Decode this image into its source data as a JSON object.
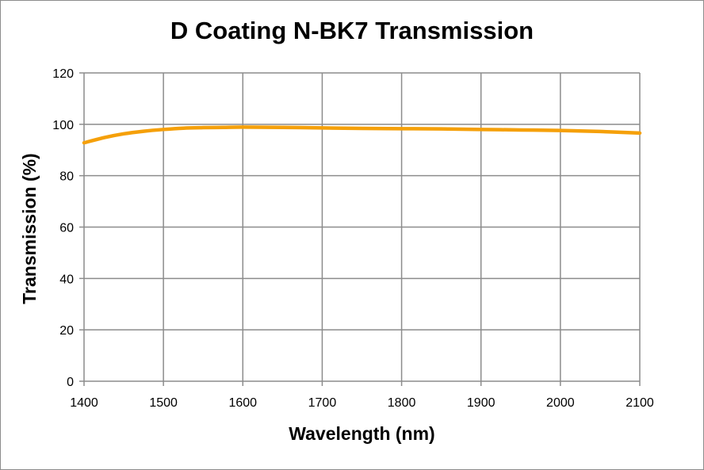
{
  "chart_data": {
    "type": "line",
    "title": "D Coating N-BK7 Transmission",
    "xlabel": "Wavelength (nm)",
    "ylabel": "Transmission (%)",
    "xlim": [
      1400,
      2100
    ],
    "ylim": [
      0,
      120
    ],
    "xticks": [
      1400,
      1500,
      1600,
      1700,
      1800,
      1900,
      2000,
      2100
    ],
    "yticks": [
      0,
      20,
      40,
      60,
      80,
      100,
      120
    ],
    "grid": true,
    "legend": "none",
    "series": [
      {
        "color": "#f5a00a",
        "x": [
          1400,
          1425,
          1450,
          1475,
          1500,
          1525,
          1550,
          1575,
          1600,
          1650,
          1700,
          1750,
          1800,
          1850,
          1900,
          1950,
          2000,
          2050,
          2100
        ],
        "y": [
          92.8,
          94.8,
          96.3,
          97.3,
          98.0,
          98.5,
          98.7,
          98.8,
          98.9,
          98.8,
          98.6,
          98.4,
          98.3,
          98.2,
          98.0,
          97.8,
          97.6,
          97.2,
          96.6
        ]
      }
    ]
  }
}
